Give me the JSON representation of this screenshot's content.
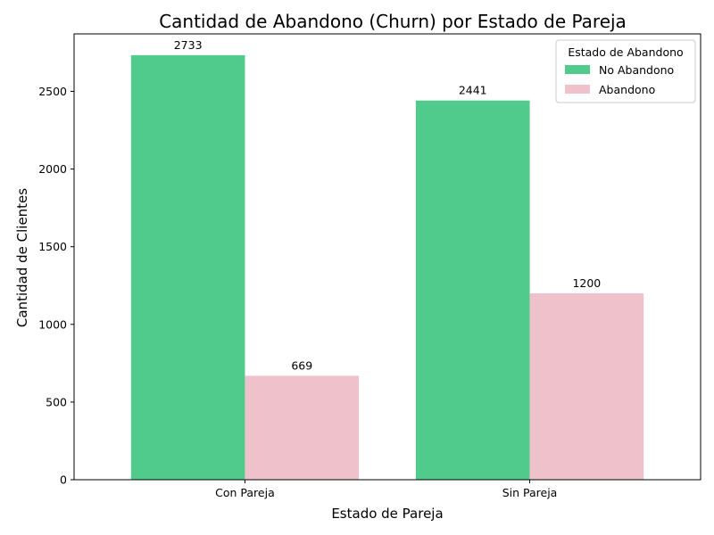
{
  "chart_data": {
    "type": "bar",
    "title": "Cantidad de Abandono (Churn) por Estado de Pareja",
    "xlabel": "Estado de Pareja",
    "ylabel": "Cantidad de Clientes",
    "categories": [
      "Con Pareja",
      "Sin Pareja"
    ],
    "series": [
      {
        "name": "No Abandono",
        "values": [
          2733,
          2441
        ],
        "color": "#50cb8b"
      },
      {
        "name": "Abandono",
        "values": [
          669,
          1200
        ],
        "color": "#efc2cb"
      }
    ],
    "ylim": [
      0,
      2870
    ],
    "yticks": [
      0,
      500,
      1000,
      1500,
      2000,
      2500
    ],
    "grid": false,
    "legend": {
      "title": "Estado de Abandono",
      "placement": "top-right"
    },
    "data_labels": true
  }
}
